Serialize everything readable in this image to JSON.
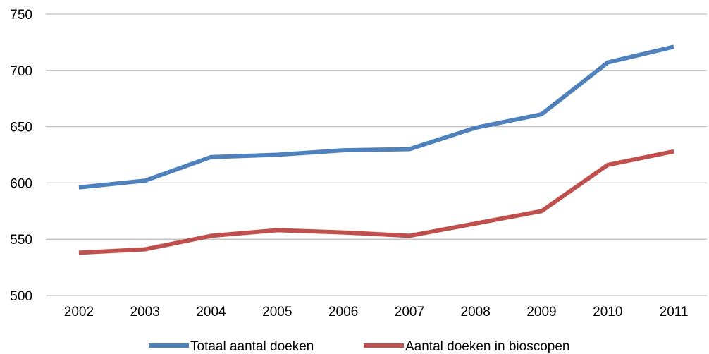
{
  "chart_data": {
    "type": "line",
    "title": "",
    "xlabel": "",
    "ylabel": "",
    "categories": [
      "2002",
      "2003",
      "2004",
      "2005",
      "2006",
      "2007",
      "2008",
      "2009",
      "2010",
      "2011"
    ],
    "ylim": [
      500,
      750
    ],
    "yticks": [
      500,
      550,
      600,
      650,
      700,
      750
    ],
    "grid": true,
    "legend_position": "bottom",
    "series": [
      {
        "name": "Totaal aantal doeken",
        "color": "#4f81bd",
        "values": [
          596,
          602,
          623,
          625,
          629,
          630,
          649,
          661,
          707,
          721
        ]
      },
      {
        "name": "Aantal doeken in bioscopen",
        "color": "#c0504d",
        "values": [
          538,
          541,
          553,
          558,
          556,
          553,
          564,
          575,
          616,
          628
        ]
      }
    ]
  }
}
